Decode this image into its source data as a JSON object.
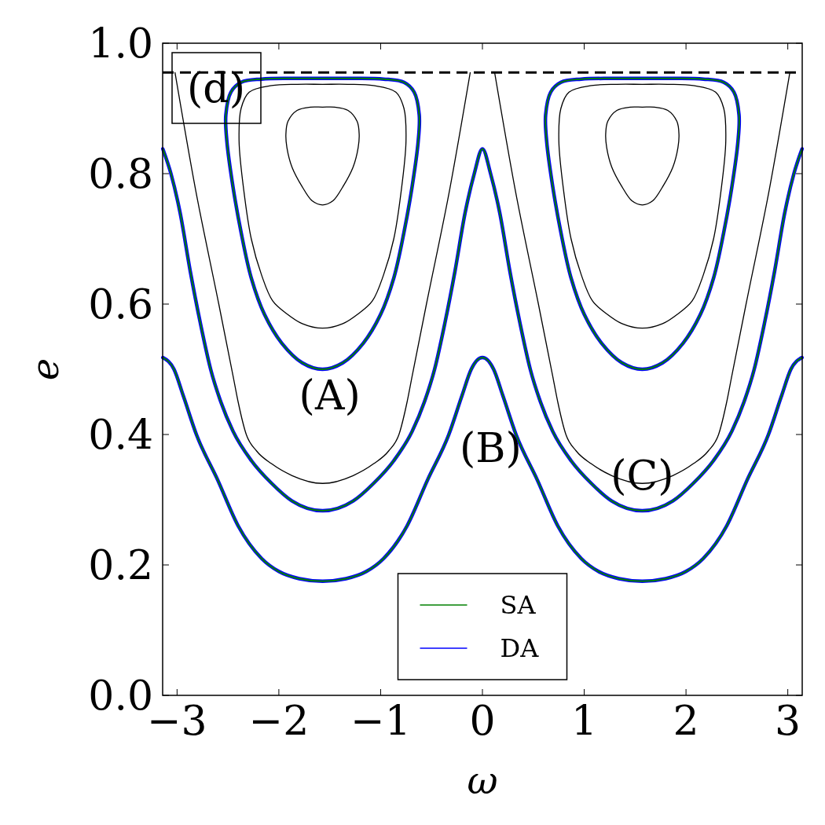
{
  "chart_data": {
    "type": "line",
    "xlabel": "ω",
    "ylabel": "e",
    "xlim": [
      -3.1416,
      3.1416
    ],
    "ylim": [
      0,
      1
    ],
    "xticks": [
      {
        "value": -3,
        "label": "−3"
      },
      {
        "value": -2,
        "label": "−2"
      },
      {
        "value": -1,
        "label": "−1"
      },
      0,
      1,
      2,
      3
    ],
    "yticks": [
      {
        "value": 0,
        "label": "0.0"
      },
      {
        "value": 0.2,
        "label": "0.2"
      },
      {
        "value": 0.4,
        "label": "0.4"
      },
      {
        "value": 0.6,
        "label": "0.6"
      },
      {
        "value": 0.8,
        "label": "0.8"
      },
      {
        "value": 1,
        "label": "1.0"
      }
    ],
    "grid": false,
    "legend": "bottom",
    "marker": "none",
    "line_style": "solid",
    "ref_lines": [
      {
        "axis": "y",
        "value": 0.955,
        "color": "#000000",
        "line_style": "dashed"
      }
    ],
    "annotations": [
      "(d)",
      "(A)",
      "(B)",
      "(C)"
    ],
    "series": [
      {
        "color": "#000000",
        "x": [
          -3.02,
          -2.82,
          -2.59,
          -2.45,
          -2.4,
          -2.32,
          -2.22,
          -2.07,
          -1.87,
          -1.57,
          -1.27,
          -1.07,
          -0.92,
          -0.82,
          -0.74,
          -0.69,
          -0.55,
          -0.32,
          -0.12
        ],
        "values": [
          0.955,
          0.777,
          0.6,
          0.49,
          0.45,
          0.4,
          0.375,
          0.355,
          0.337,
          0.325,
          0.337,
          0.355,
          0.375,
          0.4,
          0.45,
          0.49,
          0.6,
          0.777,
          0.955
        ]
      },
      {
        "color": "#000000",
        "x": [
          0.12,
          0.32,
          0.55,
          0.69,
          0.74,
          0.82,
          0.92,
          1.07,
          1.27,
          1.57,
          1.87,
          2.07,
          2.22,
          2.32,
          2.4,
          2.45,
          2.59,
          2.82,
          3.02
        ],
        "values": [
          0.955,
          0.777,
          0.6,
          0.49,
          0.45,
          0.4,
          0.375,
          0.355,
          0.337,
          0.325,
          0.337,
          0.355,
          0.375,
          0.4,
          0.45,
          0.49,
          0.6,
          0.777,
          0.955
        ]
      },
      {
        "name": "SA",
        "color": "#008000",
        "x": [
          -3.14,
          -3.03,
          -2.94,
          -2.81,
          -2.6,
          -2.4,
          -2.17,
          -2.0,
          -1.8,
          -1.57,
          -1.34,
          -1.14,
          -0.97,
          -0.74,
          -0.54,
          -0.33,
          -0.2,
          -0.11,
          0,
          0.11,
          0.2,
          0.33,
          0.54,
          0.74,
          0.97,
          1.14,
          1.34,
          1.57,
          1.8,
          2.0,
          2.17,
          2.4,
          2.6,
          2.81,
          2.94,
          3.03,
          3.14
        ],
        "values": [
          0.518,
          0.5,
          0.46,
          0.4,
          0.33,
          0.26,
          0.21,
          0.19,
          0.179,
          0.175,
          0.179,
          0.19,
          0.21,
          0.26,
          0.33,
          0.4,
          0.46,
          0.5,
          0.518,
          0.5,
          0.46,
          0.4,
          0.33,
          0.26,
          0.21,
          0.19,
          0.179,
          0.175,
          0.179,
          0.19,
          0.21,
          0.26,
          0.33,
          0.4,
          0.46,
          0.5,
          0.518
        ]
      },
      {
        "color": "#008000",
        "x": [
          -3.14,
          -3.06,
          -2.97,
          -2.87,
          -2.77,
          -2.67,
          -2.57,
          -2.45,
          -2.27,
          -2.07,
          -1.87,
          -1.57,
          -1.27,
          -1.07,
          -0.87,
          -0.69,
          -0.57,
          -0.47,
          -0.37,
          -0.27,
          -0.17,
          -0.08,
          0,
          0.08,
          0.17,
          0.27,
          0.37,
          0.47,
          0.57,
          0.69,
          0.87,
          1.07,
          1.27,
          1.57,
          1.87,
          2.07,
          2.27,
          2.45,
          2.57,
          2.67,
          2.77,
          2.87,
          2.97,
          3.06,
          3.14
        ],
        "values": [
          0.838,
          0.8,
          0.74,
          0.65,
          0.57,
          0.5,
          0.45,
          0.405,
          0.36,
          0.325,
          0.298,
          0.283,
          0.298,
          0.325,
          0.36,
          0.405,
          0.45,
          0.5,
          0.57,
          0.65,
          0.74,
          0.8,
          0.838,
          0.8,
          0.74,
          0.65,
          0.57,
          0.5,
          0.45,
          0.405,
          0.36,
          0.325,
          0.298,
          0.283,
          0.298,
          0.325,
          0.36,
          0.405,
          0.45,
          0.5,
          0.57,
          0.65,
          0.74,
          0.8,
          0.838
        ]
      },
      {
        "name": "DA",
        "color": "#0000ff",
        "x": [
          -3.14,
          -3.03,
          -2.94,
          -2.81,
          -2.6,
          -2.4,
          -2.17,
          -2.0,
          -1.8,
          -1.57,
          -1.34,
          -1.14,
          -0.97,
          -0.74,
          -0.54,
          -0.33,
          -0.2,
          -0.11,
          0,
          0.11,
          0.2,
          0.33,
          0.54,
          0.74,
          0.97,
          1.14,
          1.34,
          1.57,
          1.8,
          2.0,
          2.17,
          2.4,
          2.6,
          2.81,
          2.94,
          3.03,
          3.14
        ],
        "values": [
          0.518,
          0.5,
          0.46,
          0.4,
          0.33,
          0.26,
          0.21,
          0.19,
          0.179,
          0.175,
          0.179,
          0.19,
          0.21,
          0.26,
          0.33,
          0.4,
          0.46,
          0.5,
          0.518,
          0.5,
          0.46,
          0.4,
          0.33,
          0.26,
          0.21,
          0.19,
          0.179,
          0.175,
          0.179,
          0.19,
          0.21,
          0.26,
          0.33,
          0.4,
          0.46,
          0.5,
          0.518
        ]
      },
      {
        "color": "#0000ff",
        "x": [
          -3.14,
          -3.06,
          -2.97,
          -2.87,
          -2.77,
          -2.67,
          -2.57,
          -2.45,
          -2.27,
          -2.07,
          -1.87,
          -1.57,
          -1.27,
          -1.07,
          -0.87,
          -0.69,
          -0.57,
          -0.47,
          -0.37,
          -0.27,
          -0.17,
          -0.08,
          0,
          0.08,
          0.17,
          0.27,
          0.37,
          0.47,
          0.57,
          0.69,
          0.87,
          1.07,
          1.27,
          1.57,
          1.87,
          2.07,
          2.27,
          2.45,
          2.57,
          2.67,
          2.77,
          2.87,
          2.97,
          3.06,
          3.14
        ],
        "values": [
          0.838,
          0.8,
          0.74,
          0.65,
          0.57,
          0.5,
          0.45,
          0.405,
          0.36,
          0.325,
          0.298,
          0.283,
          0.298,
          0.325,
          0.36,
          0.405,
          0.45,
          0.5,
          0.57,
          0.65,
          0.74,
          0.8,
          0.838,
          0.8,
          0.74,
          0.65,
          0.57,
          0.5,
          0.45,
          0.405,
          0.36,
          0.325,
          0.298,
          0.283,
          0.298,
          0.325,
          0.36,
          0.405,
          0.45,
          0.5,
          0.57,
          0.65,
          0.74,
          0.8,
          0.838
        ]
      }
    ]
  }
}
